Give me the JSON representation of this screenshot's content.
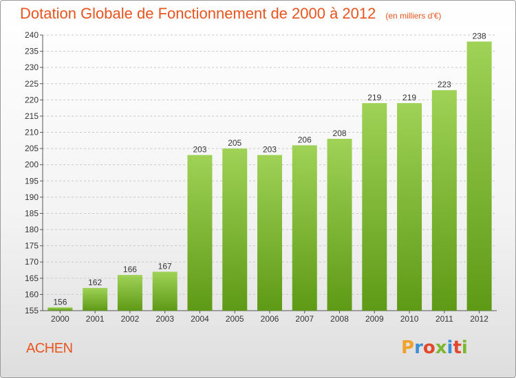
{
  "title": "Dotation Globale de Fonctionnement de 2000 à 2012",
  "unit_note": "(en milliers d'€)",
  "place": "ACHEN",
  "brand": {
    "text": "Proxiti",
    "letter_colors": [
      "#f0a22a",
      "#3b8fd6",
      "#e2462b",
      "#7cb82f",
      "#3b8fd6",
      "#e2462b",
      "#7cb82f"
    ]
  },
  "colors": {
    "bar_light": "#9fd256",
    "bar_dark": "#5e9a16",
    "title": "#e8541d"
  },
  "chart_data": {
    "type": "bar",
    "title": "Dotation Globale de Fonctionnement de 2000 à 2012",
    "categories": [
      "2000",
      "2001",
      "2002",
      "2003",
      "2004",
      "2005",
      "2006",
      "2007",
      "2008",
      "2009",
      "2010",
      "2011",
      "2012"
    ],
    "values": [
      156,
      162,
      166,
      167,
      203,
      205,
      203,
      206,
      208,
      219,
      219,
      223,
      238
    ],
    "ylim": [
      155,
      240
    ],
    "yticks": [
      155,
      160,
      165,
      170,
      175,
      180,
      185,
      190,
      195,
      200,
      205,
      210,
      215,
      220,
      225,
      230,
      235,
      240
    ],
    "grid": true,
    "xlabel": "",
    "ylabel": ""
  }
}
